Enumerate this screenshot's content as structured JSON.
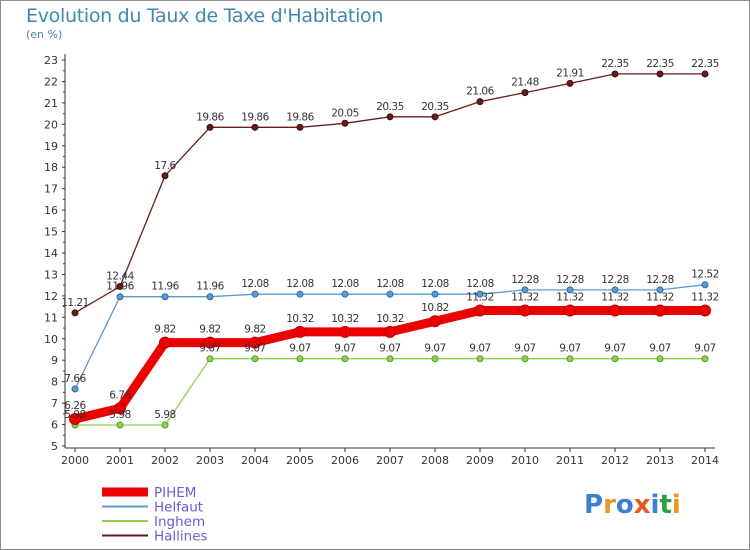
{
  "title": "Evolution du Taux de Taxe d'Habitation",
  "unit": "(en %)",
  "logo": {
    "text": "Proxiti",
    "colors": [
      "#3a7fd0",
      "#e89a1e",
      "#3a7fd0",
      "#e8581e",
      "#3a7fd0",
      "#2e9e3e",
      "#e89a1e"
    ]
  },
  "chart_data": {
    "type": "line",
    "title": "Evolution du Taux de Taxe d'Habitation",
    "ylabel": "(en %)",
    "x": [
      "2000",
      "2001",
      "2002",
      "2003",
      "2004",
      "2005",
      "2006",
      "2007",
      "2008",
      "2009",
      "2010",
      "2011",
      "2012",
      "2013",
      "2014"
    ],
    "yticks": [
      5,
      6,
      7,
      8,
      9,
      10,
      11,
      12,
      13,
      14,
      15,
      16,
      17,
      18,
      19,
      20,
      21,
      22,
      23
    ],
    "ylim": [
      5,
      23
    ],
    "grid": false,
    "legend_position": "bottom-left",
    "series": [
      {
        "name": "Hallines",
        "color": "#6b1a1a",
        "values": [
          11.21,
          12.44,
          17.6,
          19.86,
          19.86,
          19.86,
          20.05,
          20.35,
          20.35,
          21.06,
          21.48,
          21.91,
          22.35,
          22.35,
          22.35
        ],
        "labels": [
          "11.21",
          "12.44",
          "17.6",
          "19.86",
          "19.86",
          "19.86",
          "20.05",
          "20.35",
          "20.35",
          "21.06",
          "21.48",
          "21.91",
          "22.35",
          "22.35",
          "22.35"
        ]
      },
      {
        "name": "Helfaut",
        "color": "#5b9bd5",
        "values": [
          7.66,
          11.96,
          11.96,
          11.96,
          12.08,
          12.08,
          12.08,
          12.08,
          12.08,
          12.08,
          12.28,
          12.28,
          12.28,
          12.28,
          12.52
        ],
        "labels": [
          "7.66",
          "11.96",
          "11.96",
          "11.96",
          "12.08",
          "12.08",
          "12.08",
          "12.08",
          "12.08",
          "12.08",
          "12.28",
          "12.28",
          "12.28",
          "12.28",
          "12.52"
        ]
      },
      {
        "name": "Inghem",
        "color": "#8fd14f",
        "values": [
          5.98,
          5.98,
          5.98,
          9.07,
          9.07,
          9.07,
          9.07,
          9.07,
          9.07,
          9.07,
          9.07,
          9.07,
          9.07,
          9.07,
          9.07
        ],
        "labels": [
          "5.98",
          "5.98",
          "5.98",
          "9.07",
          "9.07",
          "9.07",
          "9.07",
          "9.07",
          "9.07",
          "9.07",
          "9.07",
          "9.07",
          "9.07",
          "9.07",
          "9.07"
        ]
      },
      {
        "name": "PIHEM",
        "color": "#ee0000",
        "values": [
          6.26,
          6.76,
          9.82,
          9.82,
          9.82,
          10.32,
          10.32,
          10.32,
          10.82,
          11.32,
          11.32,
          11.32,
          11.32,
          11.32,
          11.32
        ],
        "labels": [
          "6.26",
          "6.76",
          "9.82",
          "9.82",
          "9.82",
          "10.32",
          "10.32",
          "10.32",
          "10.82",
          "11.32",
          "11.32",
          "11.32",
          "11.32",
          "11.32",
          "11.32"
        ]
      }
    ],
    "legend": [
      "PIHEM",
      "Helfaut",
      "Inghem",
      "Hallines"
    ]
  }
}
